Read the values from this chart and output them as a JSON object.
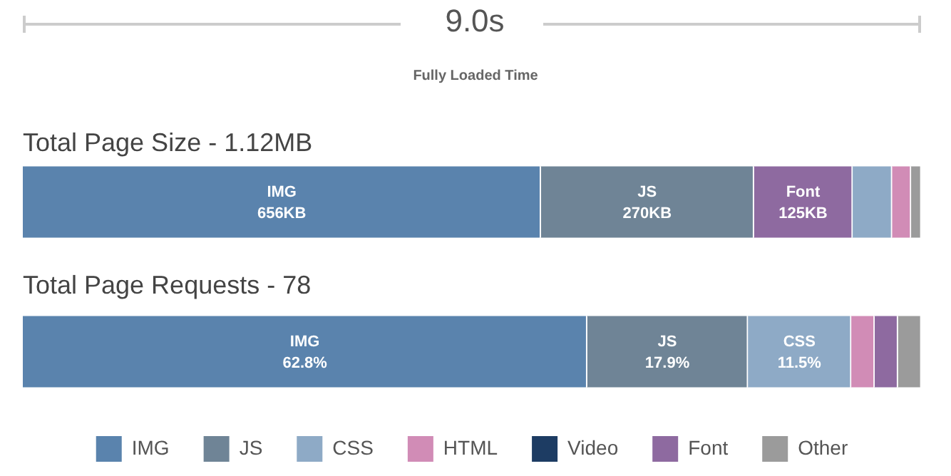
{
  "chart_data": [
    {
      "type": "other",
      "title": "9.0s",
      "subtitle": "Fully Loaded Time"
    },
    {
      "type": "bar",
      "title": "Total Page Size - 1.12MB",
      "orientation": "horizontal",
      "stacked": true,
      "categories": [
        null
      ],
      "series": [
        {
          "name": "IMG",
          "color": "#5a83ad",
          "values": [
            656
          ],
          "value_labels": [
            "656KB"
          ]
        },
        {
          "name": "JS",
          "color": "#6f8496",
          "values": [
            270
          ],
          "value_labels": [
            "270KB"
          ]
        },
        {
          "name": "Font",
          "color": "#8e6aa0",
          "values": [
            125
          ],
          "value_labels": [
            "125KB"
          ]
        },
        {
          "color": "#8eaac6",
          "values": [
            50
          ]
        },
        {
          "color": "#d18cb6",
          "values": [
            24
          ]
        },
        {
          "color": "#9b9b9b",
          "values": [
            13
          ]
        }
      ]
    },
    {
      "type": "bar",
      "title": "Total Page Requests - 78",
      "orientation": "horizontal",
      "stacked": true,
      "legend": "bottom",
      "categories": [
        null
      ],
      "series": [
        {
          "name": "IMG",
          "color": "#5a83ad",
          "values": [
            62.8
          ],
          "value_labels": [
            "62.8%"
          ]
        },
        {
          "name": "JS",
          "color": "#6f8496",
          "values": [
            17.9
          ],
          "value_labels": [
            "17.9%"
          ]
        },
        {
          "name": "CSS",
          "color": "#8eaac6",
          "values": [
            11.5
          ],
          "value_labels": [
            "11.5%"
          ]
        },
        {
          "name": "HTML",
          "color": "#d18cb6",
          "values": [
            2.6
          ]
        },
        {
          "name": "Video",
          "color": "#1d3c63",
          "values": [
            null
          ]
        },
        {
          "name": "Font",
          "color": "#8e6aa0",
          "values": [
            2.6
          ]
        },
        {
          "name": "Other",
          "color": "#9b9b9b",
          "values": [
            2.6
          ]
        }
      ]
    }
  ]
}
